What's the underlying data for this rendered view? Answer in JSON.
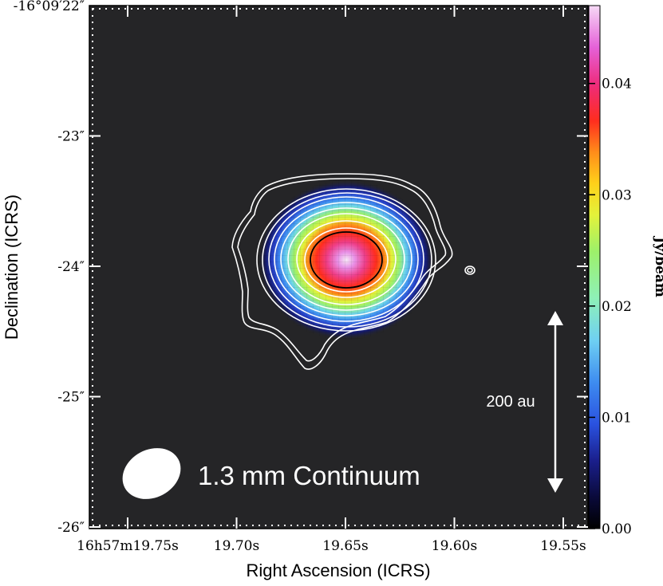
{
  "chart_data": {
    "type": "heatmap",
    "title": "",
    "xlabel": "Right Ascension (ICRS)",
    "ylabel": "Declination (ICRS)",
    "colorbar_label": "Jy/beam",
    "colorbar_ticks": [
      "0.00",
      "0.01",
      "0.02",
      "0.03",
      "0.04"
    ],
    "colorbar_range": [
      0.0,
      0.047
    ],
    "colormap": "cubehelix-like (black-blue-cyan-green-yellow-red-magenta-white)",
    "x_tick_labels": [
      {
        "text": "16h57m19.75s",
        "ra_s": 19.75
      },
      {
        "text": "19.70s",
        "ra_s": 19.7
      },
      {
        "text": "19.65s",
        "ra_s": 19.65
      },
      {
        "text": "19.60s",
        "ra_s": 19.6
      },
      {
        "text": "19.55s",
        "ra_s": 19.55
      }
    ],
    "y_tick_labels": [
      {
        "text": "-16°09′22″",
        "dec_arcsec": 22
      },
      {
        "text": "-23″",
        "dec_arcsec": 23
      },
      {
        "text": "-24″",
        "dec_arcsec": 24
      },
      {
        "text": "-25″",
        "dec_arcsec": 25
      },
      {
        "text": "-26″",
        "dec_arcsec": 26
      }
    ],
    "source": {
      "peak_jy_per_beam": 0.047,
      "ra_s": 19.648,
      "dec_arcsec": 23.93
    },
    "annotation": "1.3 mm Continuum",
    "scale_bar": {
      "label": "200 au"
    },
    "background_color": "#252527"
  }
}
